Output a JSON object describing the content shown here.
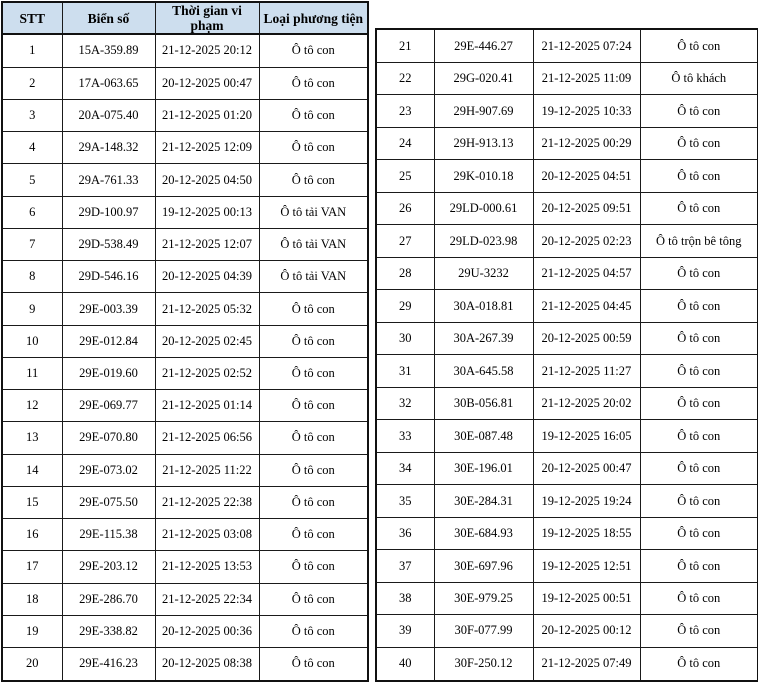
{
  "columns": {
    "stt": "STT",
    "plate": "Biển số",
    "time": "Thời gian vi phạm",
    "vehicle_type": "Loại phương tiện"
  },
  "colors": {
    "header_bg": "#cddeee",
    "border": "#1a1a1a",
    "text": "#000000",
    "page_bg": "#ffffff"
  },
  "tables": [
    {
      "id": "left",
      "has_header": true,
      "rows": [
        [
          "1",
          "15A-359.89",
          "21-12-2025 20:12",
          "Ô tô con"
        ],
        [
          "2",
          "17A-063.65",
          "20-12-2025 00:47",
          "Ô tô con"
        ],
        [
          "3",
          "20A-075.40",
          "21-12-2025 01:20",
          "Ô tô con"
        ],
        [
          "4",
          "29A-148.32",
          "21-12-2025 12:09",
          "Ô tô con"
        ],
        [
          "5",
          "29A-761.33",
          "20-12-2025 04:50",
          "Ô tô con"
        ],
        [
          "6",
          "29D-100.97",
          "19-12-2025 00:13",
          "Ô tô tải VAN"
        ],
        [
          "7",
          "29D-538.49",
          "21-12-2025 12:07",
          "Ô tô tải VAN"
        ],
        [
          "8",
          "29D-546.16",
          "20-12-2025 04:39",
          "Ô tô tải VAN"
        ],
        [
          "9",
          "29E-003.39",
          "21-12-2025 05:32",
          "Ô tô con"
        ],
        [
          "10",
          "29E-012.84",
          "20-12-2025 02:45",
          "Ô tô con"
        ],
        [
          "11",
          "29E-019.60",
          "21-12-2025 02:52",
          "Ô tô con"
        ],
        [
          "12",
          "29E-069.77",
          "21-12-2025 01:14",
          "Ô tô con"
        ],
        [
          "13",
          "29E-070.80",
          "21-12-2025 06:56",
          "Ô tô con"
        ],
        [
          "14",
          "29E-073.02",
          "21-12-2025 11:22",
          "Ô tô con"
        ],
        [
          "15",
          "29E-075.50",
          "21-12-2025 22:38",
          "Ô tô con"
        ],
        [
          "16",
          "29E-115.38",
          "21-12-2025 03:08",
          "Ô tô con"
        ],
        [
          "17",
          "29E-203.12",
          "21-12-2025 13:53",
          "Ô tô con"
        ],
        [
          "18",
          "29E-286.70",
          "21-12-2025 22:34",
          "Ô tô con"
        ],
        [
          "19",
          "29E-338.82",
          "20-12-2025 00:36",
          "Ô tô con"
        ],
        [
          "20",
          "29E-416.23",
          "20-12-2025 08:38",
          "Ô tô con"
        ]
      ]
    },
    {
      "id": "right",
      "has_header": false,
      "rows": [
        [
          "21",
          "29E-446.27",
          "21-12-2025 07:24",
          "Ô tô con"
        ],
        [
          "22",
          "29G-020.41",
          "21-12-2025 11:09",
          "Ô tô khách"
        ],
        [
          "23",
          "29H-907.69",
          "19-12-2025 10:33",
          "Ô tô con"
        ],
        [
          "24",
          "29H-913.13",
          "21-12-2025 00:29",
          "Ô tô con"
        ],
        [
          "25",
          "29K-010.18",
          "20-12-2025 04:51",
          "Ô tô con"
        ],
        [
          "26",
          "29LD-000.61",
          "20-12-2025 09:51",
          "Ô tô con"
        ],
        [
          "27",
          "29LD-023.98",
          "20-12-2025 02:23",
          "Ô tô trộn bê tông"
        ],
        [
          "28",
          "29U-3232",
          "21-12-2025 04:57",
          "Ô tô con"
        ],
        [
          "29",
          "30A-018.81",
          "21-12-2025 04:45",
          "Ô tô con"
        ],
        [
          "30",
          "30A-267.39",
          "20-12-2025 00:59",
          "Ô tô con"
        ],
        [
          "31",
          "30A-645.58",
          "21-12-2025 11:27",
          "Ô tô con"
        ],
        [
          "32",
          "30B-056.81",
          "21-12-2025 20:02",
          "Ô tô con"
        ],
        [
          "33",
          "30E-087.48",
          "19-12-2025 16:05",
          "Ô tô con"
        ],
        [
          "34",
          "30E-196.01",
          "20-12-2025 00:47",
          "Ô tô con"
        ],
        [
          "35",
          "30E-284.31",
          "19-12-2025 19:24",
          "Ô tô con"
        ],
        [
          "36",
          "30E-684.93",
          "19-12-2025 18:55",
          "Ô tô con"
        ],
        [
          "37",
          "30E-697.96",
          "19-12-2025 12:51",
          "Ô tô con"
        ],
        [
          "38",
          "30E-979.25",
          "19-12-2025 00:51",
          "Ô tô con"
        ],
        [
          "39",
          "30F-077.99",
          "20-12-2025 00:12",
          "Ô tô con"
        ],
        [
          "40",
          "30F-250.12",
          "21-12-2025 07:49",
          "Ô tô con"
        ]
      ]
    }
  ]
}
